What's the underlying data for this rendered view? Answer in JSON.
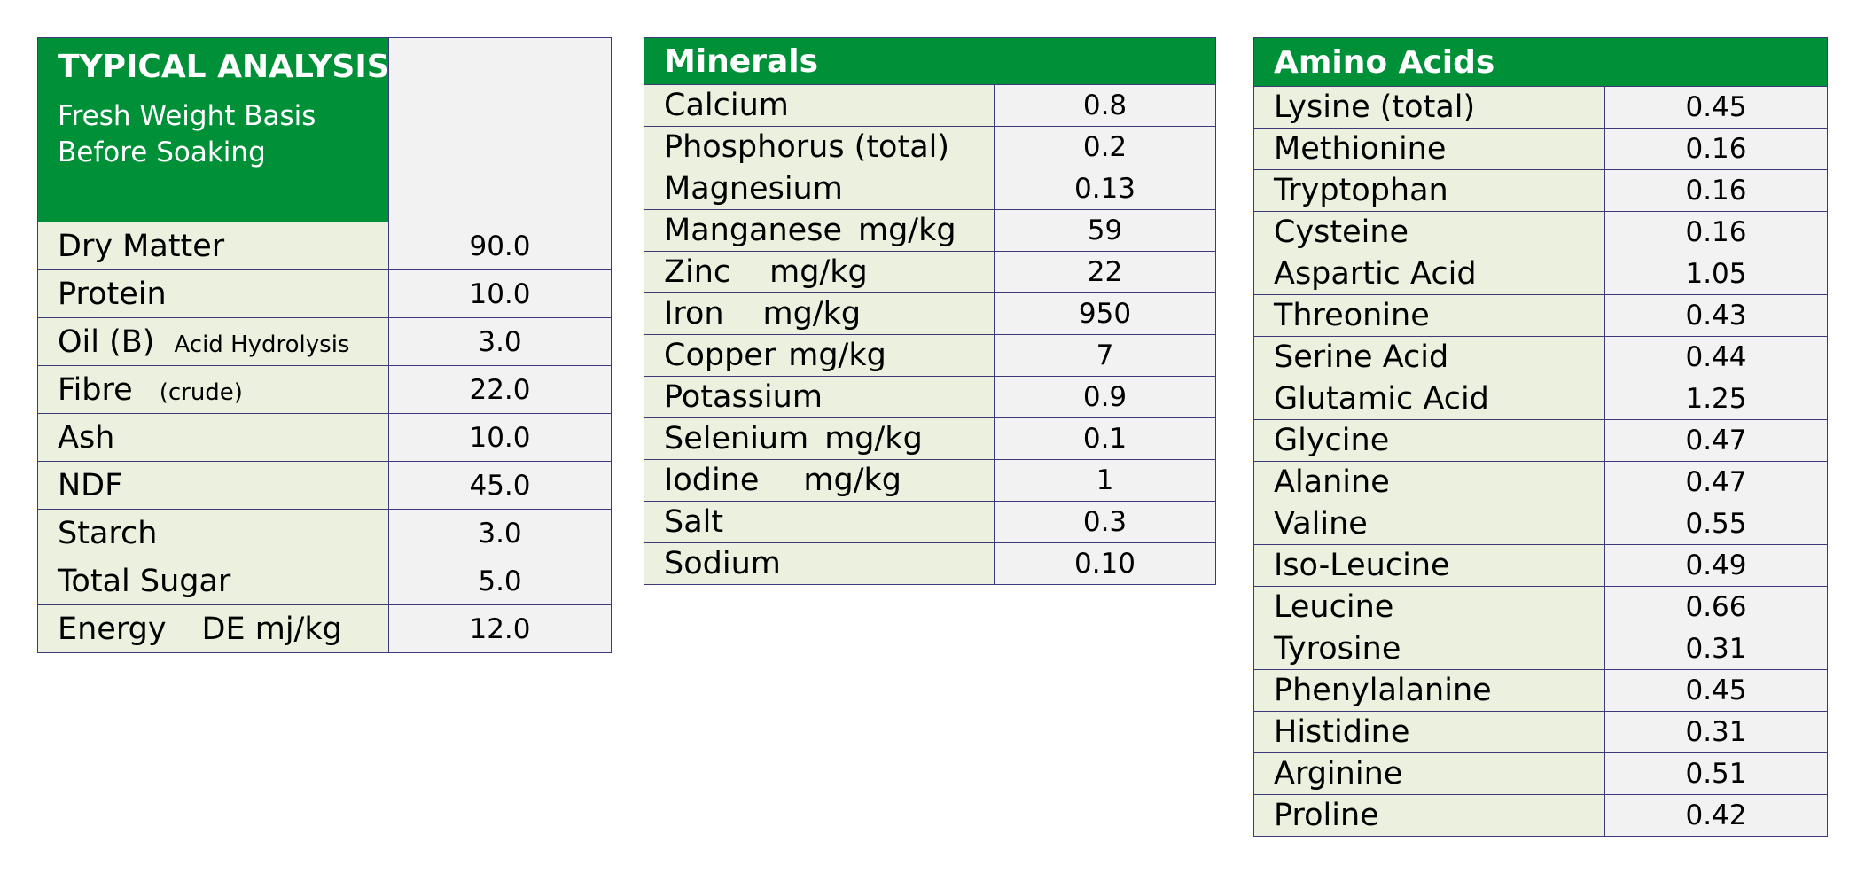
{
  "typical_analysis": {
    "title": "TYPICAL ANALYSIS",
    "subtitle_line1": "Fresh Weight Basis",
    "subtitle_line2": "Before Soaking",
    "rows": [
      {
        "label": "Dry Matter",
        "value": "90.0"
      },
      {
        "label": "Protein",
        "value": "10.0"
      },
      {
        "label": "Oil (B)",
        "note": "Acid Hydrolysis",
        "value": "3.0"
      },
      {
        "label": "Fibre",
        "note": "(crude)",
        "value": "22.0"
      },
      {
        "label": "Ash",
        "value": "10.0"
      },
      {
        "label": "NDF",
        "value": "45.0"
      },
      {
        "label": "Starch",
        "value": "3.0"
      },
      {
        "label": "Total Sugar",
        "value": "5.0"
      },
      {
        "label": "Energy",
        "unit": "DE mj/kg",
        "value": "12.0"
      }
    ]
  },
  "minerals": {
    "title": "Minerals",
    "rows": [
      {
        "label": "Calcium",
        "value": "0.8"
      },
      {
        "label": "Phosphorus (total)",
        "value": "0.2"
      },
      {
        "label": "Magnesium",
        "value": "0.13"
      },
      {
        "label": "Manganese",
        "unit": "mg/kg",
        "value": "59"
      },
      {
        "label": "Zinc",
        "unit": "mg/kg",
        "value": "22"
      },
      {
        "label": "Iron",
        "unit": "mg/kg",
        "value": "950"
      },
      {
        "label": "Copper",
        "unit": "mg/kg",
        "value": "7"
      },
      {
        "label": "Potassium",
        "value": "0.9"
      },
      {
        "label": "Selenium",
        "unit": "mg/kg",
        "value": "0.1"
      },
      {
        "label": "Iodine",
        "unit": "mg/kg",
        "value": "1"
      },
      {
        "label": "Salt",
        "value": "0.3"
      },
      {
        "label": "Sodium",
        "value": "0.10"
      }
    ]
  },
  "amino_acids": {
    "title": "Amino Acids",
    "rows": [
      {
        "label": "Lysine (total)",
        "value": "0.45"
      },
      {
        "label": "Methionine",
        "value": "0.16"
      },
      {
        "label": "Tryptophan",
        "value": "0.16"
      },
      {
        "label": "Cysteine",
        "value": "0.16"
      },
      {
        "label": "Aspartic Acid",
        "value": "1.05"
      },
      {
        "label": "Threonine",
        "value": "0.43"
      },
      {
        "label": "Serine Acid",
        "value": "0.44"
      },
      {
        "label": "Glutamic Acid",
        "value": "1.25"
      },
      {
        "label": "Glycine",
        "value": "0.47"
      },
      {
        "label": "Alanine",
        "value": "0.47"
      },
      {
        "label": "Valine",
        "value": "0.55"
      },
      {
        "label": "Iso-Leucine",
        "value": "0.49"
      },
      {
        "label": "Leucine",
        "value": "0.66"
      },
      {
        "label": "Tyrosine",
        "value": "0.31"
      },
      {
        "label": "Phenylalanine",
        "value": "0.45"
      },
      {
        "label": "Histidine",
        "value": "0.31"
      },
      {
        "label": "Arginine",
        "value": "0.51"
      },
      {
        "label": "Proline",
        "value": "0.42"
      }
    ]
  },
  "colors": {
    "header_green": "#009138",
    "label_cell": "#ebf1de",
    "value_cell": "#f2f2f2",
    "border": "#3c3a7a"
  }
}
